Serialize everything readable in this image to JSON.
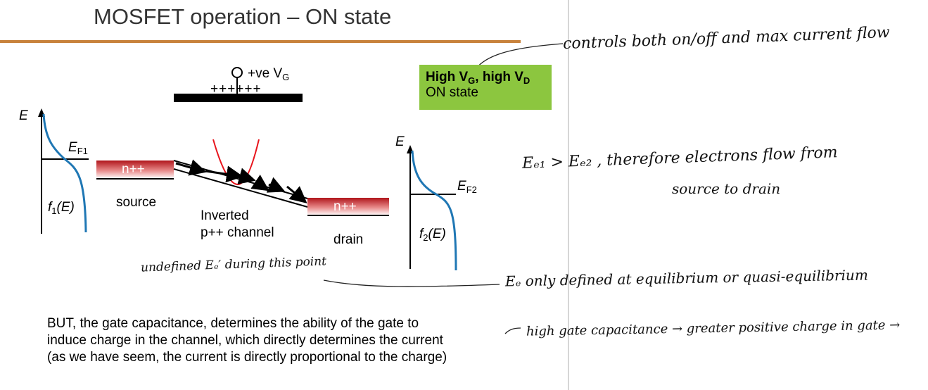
{
  "slide": {
    "title": "MOSFET operation – ON state"
  },
  "diagram": {
    "gate_label_prefix": "+ve V",
    "gate_label_sub": "G",
    "gate_charges": "++++++",
    "left_axis_label": "E",
    "left_fermi_label": "E",
    "left_fermi_sub": "F1",
    "left_fermi_fn": "f",
    "left_fermi_fn_sub": "1",
    "left_fermi_fn_arg": "(E)",
    "source_region_label": "n++",
    "source_label": "source",
    "channel_label_line1": "Inverted",
    "channel_label_line2": "p++ channel",
    "drain_region_label": "n++",
    "drain_label": "drain",
    "right_axis_label": "E",
    "right_fermi_label": "E",
    "right_fermi_sub": "F2",
    "right_fermi_fn": "f",
    "right_fermi_fn_sub": "2",
    "right_fermi_fn_arg": "(E)",
    "colors": {
      "fermi_curve": "#1f77b4",
      "doping_region_top": "#b0151b",
      "barrier_curve": "#e8141c",
      "title_rule": "#c8823c",
      "state_box": "#8cc63f"
    }
  },
  "state_box": {
    "line1_prefix": "High V",
    "line1_sub_g": "G",
    "line1_mid": ", high V",
    "line1_sub_d": "D",
    "line2": "ON state"
  },
  "body_text": {
    "line1": "BUT, the gate capacitance, determines the ability of the gate to",
    "line2": "induce charge in the channel, which directly determines the current",
    "line3": "(as we have seem, the current is directly proportional to the charge)"
  },
  "handwritten_notes": {
    "note_control": "controls both on/off and max current flow",
    "note_ef": "Eₑ₁ > Eₑ₂ , therefore electrons flow from",
    "note_ef_line2": "source to drain",
    "note_undefined": "undefined Eₑ′ during this point",
    "note_equilibrium": "Eₑ only defined at equilibrium or quasi-equilibrium",
    "note_capacitance": "high gate capacitance → greater positive charge in gate →"
  }
}
